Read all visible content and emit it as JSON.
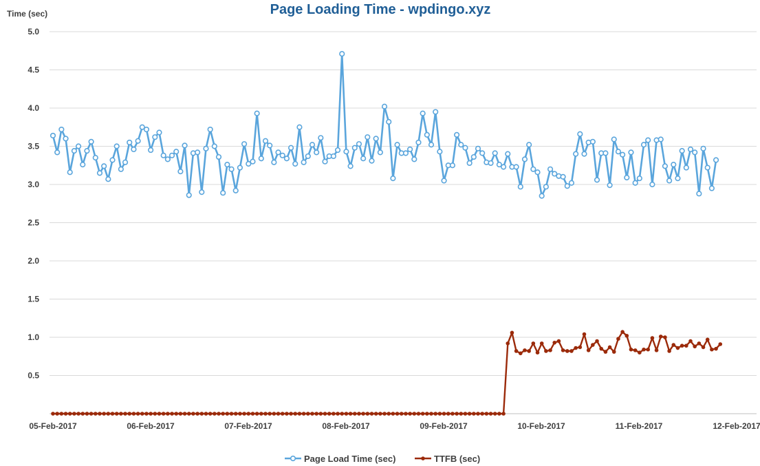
{
  "chart_data": {
    "type": "line",
    "title": "Page Loading Time - wpdingo.xyz",
    "ylabel": "Time (sec)",
    "xlabel": "",
    "ylim": [
      0,
      5.0
    ],
    "xlim": [
      "05-Feb-2017",
      "12-Feb-2017"
    ],
    "y_ticks": [
      "0.5",
      "1.0",
      "1.5",
      "2.0",
      "2.5",
      "3.0",
      "3.5",
      "4.0",
      "4.5",
      "5.0"
    ],
    "x_ticks": [
      "05-Feb-2017",
      "06-Feb-2017",
      "07-Feb-2017",
      "08-Feb-2017",
      "09-Feb-2017",
      "10-Feb-2017",
      "11-Feb-2017",
      "12-Feb-2017"
    ],
    "grid": true,
    "legend_position": "bottom",
    "series": [
      {
        "name": "Page Load Time (sec)",
        "color": "#5aa5dc",
        "marker": "hollow-circle",
        "values": [
          3.64,
          3.42,
          3.72,
          3.6,
          3.16,
          3.44,
          3.5,
          3.26,
          3.44,
          3.56,
          3.35,
          3.15,
          3.24,
          3.07,
          3.32,
          3.5,
          3.2,
          3.29,
          3.55,
          3.46,
          3.57,
          3.75,
          3.72,
          3.45,
          3.62,
          3.68,
          3.38,
          3.33,
          3.38,
          3.43,
          3.17,
          3.51,
          2.86,
          3.41,
          3.42,
          2.9,
          3.47,
          3.72,
          3.5,
          3.36,
          2.89,
          3.26,
          3.2,
          2.92,
          3.22,
          3.53,
          3.27,
          3.3,
          3.93,
          3.34,
          3.57,
          3.51,
          3.29,
          3.42,
          3.38,
          3.34,
          3.48,
          3.27,
          3.75,
          3.29,
          3.37,
          3.52,
          3.42,
          3.61,
          3.3,
          3.37,
          3.37,
          3.45,
          4.71,
          3.43,
          3.24,
          3.48,
          3.53,
          3.34,
          3.62,
          3.31,
          3.6,
          3.42,
          4.02,
          3.82,
          3.08,
          3.52,
          3.41,
          3.41,
          3.46,
          3.33,
          3.55,
          3.93,
          3.65,
          3.52,
          3.95,
          3.43,
          3.05,
          3.25,
          3.25,
          3.65,
          3.52,
          3.48,
          3.28,
          3.36,
          3.47,
          3.41,
          3.29,
          3.28,
          3.41,
          3.26,
          3.23,
          3.4,
          3.23,
          3.23,
          2.97,
          3.33,
          3.52,
          3.2,
          3.16,
          2.85,
          2.97,
          3.2,
          3.14,
          3.11,
          3.1,
          2.98,
          3.02,
          3.4,
          3.66,
          3.4,
          3.55,
          3.56,
          3.06,
          3.41,
          3.41,
          2.99,
          3.59,
          3.43,
          3.39,
          3.09,
          3.42,
          3.02,
          3.08,
          3.52,
          3.58,
          3.0,
          3.58,
          3.59,
          3.24,
          3.05,
          3.26,
          3.08,
          3.44,
          3.22,
          3.46,
          3.42,
          2.88,
          3.47,
          3.22,
          2.95,
          3.32
        ]
      },
      {
        "name": "TTFB (sec)",
        "color": "#9b2a0a",
        "marker": "filled-circle",
        "values": [
          0,
          0,
          0,
          0,
          0,
          0,
          0,
          0,
          0,
          0,
          0,
          0,
          0,
          0,
          0,
          0,
          0,
          0,
          0,
          0,
          0,
          0,
          0,
          0,
          0,
          0,
          0,
          0,
          0,
          0,
          0,
          0,
          0,
          0,
          0,
          0,
          0,
          0,
          0,
          0,
          0,
          0,
          0,
          0,
          0,
          0,
          0,
          0,
          0,
          0,
          0,
          0,
          0,
          0,
          0,
          0,
          0,
          0,
          0,
          0,
          0,
          0,
          0,
          0,
          0,
          0,
          0,
          0,
          0,
          0,
          0,
          0,
          0,
          0,
          0,
          0,
          0,
          0,
          0,
          0,
          0,
          0,
          0,
          0,
          0,
          0,
          0,
          0,
          0,
          0,
          0,
          0,
          0,
          0,
          0,
          0,
          0,
          0,
          0,
          0,
          0,
          0,
          0,
          0,
          0,
          0,
          0,
          0.92,
          1.06,
          0.82,
          0.79,
          0.83,
          0.82,
          0.92,
          0.8,
          0.92,
          0.82,
          0.83,
          0.93,
          0.95,
          0.83,
          0.82,
          0.82,
          0.86,
          0.87,
          1.04,
          0.83,
          0.9,
          0.95,
          0.85,
          0.81,
          0.87,
          0.81,
          0.98,
          1.07,
          1.02,
          0.84,
          0.83,
          0.8,
          0.84,
          0.84,
          0.99,
          0.83,
          1.01,
          1.0,
          0.82,
          0.9,
          0.86,
          0.89,
          0.89,
          0.95,
          0.88,
          0.92,
          0.87,
          0.97,
          0.84,
          0.85,
          0.91
        ]
      }
    ]
  }
}
